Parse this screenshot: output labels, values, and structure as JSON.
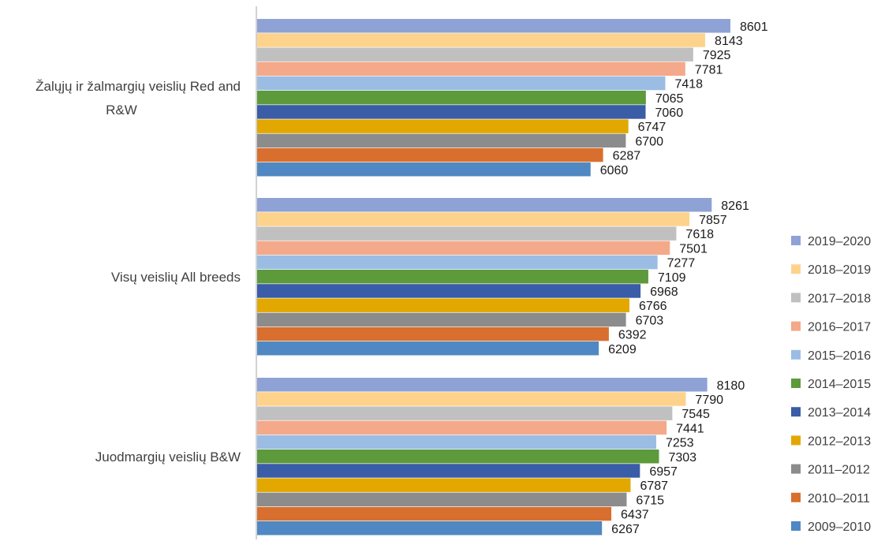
{
  "chart_data": {
    "type": "bar",
    "orientation": "horizontal",
    "categories": [
      [
        "Žalųjų ir žalmargių veislių Red and",
        "R&W"
      ],
      [
        "Visų veislių All breeds"
      ],
      [
        "Juodmargių veislių B&W"
      ]
    ],
    "series": [
      {
        "name": "2019–2020",
        "color": "#8ea2d6",
        "values": [
          8601,
          8261,
          8180
        ]
      },
      {
        "name": "2018–2019",
        "color": "#fdd38c",
        "values": [
          8143,
          7857,
          7790
        ]
      },
      {
        "name": "2017–2018",
        "color": "#c0c0c0",
        "values": [
          7925,
          7618,
          7545
        ]
      },
      {
        "name": "2016–2017",
        "color": "#f3a98a",
        "values": [
          7781,
          7501,
          7441
        ]
      },
      {
        "name": "2015–2016",
        "color": "#9bbde4",
        "values": [
          7418,
          7277,
          7253
        ]
      },
      {
        "name": "2014–2015",
        "color": "#5c9a3c",
        "values": [
          7065,
          7109,
          7303
        ]
      },
      {
        "name": "2013–2014",
        "color": "#3b5ca6",
        "values": [
          7060,
          6968,
          6957
        ]
      },
      {
        "name": "2012–2013",
        "color": "#e2a800",
        "values": [
          6747,
          6766,
          6787
        ]
      },
      {
        "name": "2011–2012",
        "color": "#8c8c8c",
        "values": [
          6700,
          6703,
          6715
        ]
      },
      {
        "name": "2010–2011",
        "color": "#d86f2e",
        "values": [
          6287,
          6392,
          6437
        ]
      },
      {
        "name": "2009–2010",
        "color": "#4f88c2",
        "values": [
          6060,
          6209,
          6267
        ]
      }
    ],
    "title": "",
    "xlabel": "",
    "ylabel": "",
    "xlim": [
      0,
      9000
    ],
    "data_labels": true,
    "grid": false,
    "legend_position": "right"
  }
}
